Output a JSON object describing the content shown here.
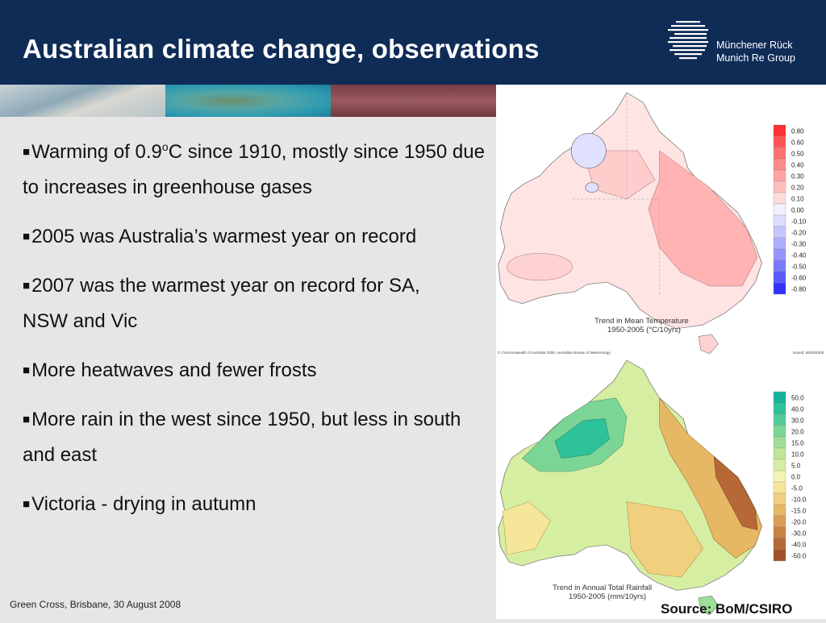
{
  "slide": {
    "title": "Australian climate change, observations",
    "logo": {
      "line1": "Münchener Rück",
      "line2": "Munich Re Group"
    },
    "bullets": [
      {
        "pre": "Warming of 0.9",
        "sup": "o",
        "post": "C since 1910, mostly since 1950 due to increases in greenhouse gases"
      },
      {
        "pre": "2005 was Australia’s warmest year on record",
        "sup": "",
        "post": ""
      },
      {
        "pre": "2007 was the warmest year on record for SA, NSW and Vic",
        "sup": "",
        "post": ""
      },
      {
        "pre": "More heatwaves and fewer frosts",
        "sup": "",
        "post": ""
      },
      {
        "pre": "More rain in the west since 1950, but less in south and east",
        "sup": "",
        "post": ""
      },
      {
        "pre": "Victoria - drying in autumn",
        "sup": "",
        "post": ""
      }
    ],
    "footer": "Green Cross, Brisbane, 30 August 2008",
    "source": "Source: BoM/CSIRO"
  },
  "temp_map": {
    "title_line1": "Trend in Mean Temperature",
    "title_line2": "1950-2005 (°C/10yrs)",
    "copyright": "© Commonwealth of Australia 2006, Australian Bureau of Meteorology",
    "issued": "Issued: 06/03/2006",
    "legend": [
      {
        "label": "0.80",
        "color": "#ff3333"
      },
      {
        "label": "0.60",
        "color": "#ff5555"
      },
      {
        "label": "0.50",
        "color": "#ff7070"
      },
      {
        "label": "0.40",
        "color": "#ff8a8a"
      },
      {
        "label": "0.30",
        "color": "#ffa3a3"
      },
      {
        "label": "0.20",
        "color": "#ffbebe"
      },
      {
        "label": "0.10",
        "color": "#ffdada"
      },
      {
        "label": "0.00",
        "color": "#f2f0ff"
      },
      {
        "label": "-0.10",
        "color": "#dcdcff"
      },
      {
        "label": "-0.20",
        "color": "#c6c6ff"
      },
      {
        "label": "-0.30",
        "color": "#aeaeff"
      },
      {
        "label": "-0.40",
        "color": "#9595ff"
      },
      {
        "label": "-0.50",
        "color": "#7a7aff"
      },
      {
        "label": "-0.60",
        "color": "#5a5aff"
      },
      {
        "label": "-0.80",
        "color": "#3333ff"
      }
    ]
  },
  "rain_map": {
    "title_line1": "Trend in Annual Total Rainfall",
    "title_line2": "1950-2005 (mm/10yrs)",
    "legend": [
      {
        "label": "50.0",
        "color": "#14b49a"
      },
      {
        "label": "40.0",
        "color": "#2dc29a"
      },
      {
        "label": "30.0",
        "color": "#52cc98"
      },
      {
        "label": "20.0",
        "color": "#7bd696"
      },
      {
        "label": "15.0",
        "color": "#9fde96"
      },
      {
        "label": "10.0",
        "color": "#bde69a"
      },
      {
        "label": "5.0",
        "color": "#d6eea2"
      },
      {
        "label": "0.0",
        "color": "#f4f4b4"
      },
      {
        "label": "-5.0",
        "color": "#f6e69a"
      },
      {
        "label": "-10.0",
        "color": "#f0d07e"
      },
      {
        "label": "-15.0",
        "color": "#e6b866"
      },
      {
        "label": "-20.0",
        "color": "#d89c52"
      },
      {
        "label": "-30.0",
        "color": "#c88242"
      },
      {
        "label": "-40.0",
        "color": "#b66836"
      },
      {
        "label": "-50.0",
        "color": "#a24f2a"
      }
    ]
  }
}
